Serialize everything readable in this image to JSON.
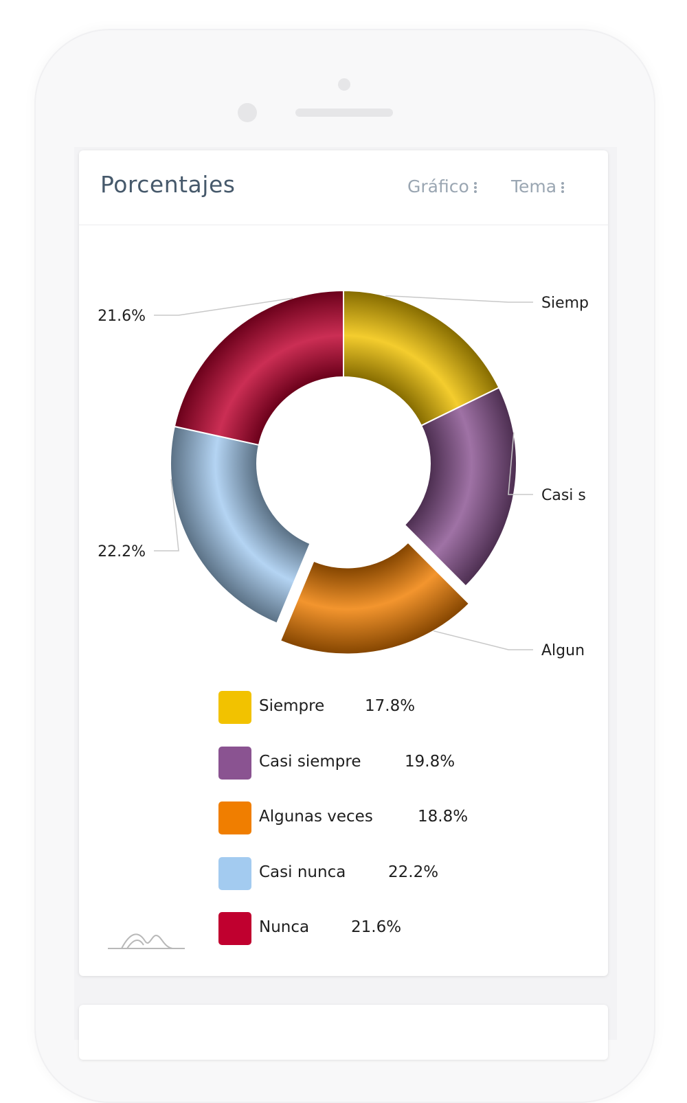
{
  "card": {
    "title": "Porcentajes",
    "menu_chart": "Gráfico",
    "menu_theme": "Tema"
  },
  "chart_data": {
    "type": "pie",
    "variant": "donut",
    "title": "Porcentajes",
    "categories": [
      "Siempre",
      "Casi siempre",
      "Algunas veces",
      "Casi nunca",
      "Nunca"
    ],
    "values": [
      17.8,
      19.8,
      18.8,
      22.2,
      21.6
    ],
    "unit": "%",
    "colors": [
      "#f2c200",
      "#8a5391",
      "#f07e00",
      "#a3cbf0",
      "#c0002f"
    ],
    "exploded": "Algunas veces",
    "outside_labels": [
      {
        "text": "Siemp",
        "side": "right"
      },
      {
        "text": "Casi s",
        "side": "right"
      },
      {
        "text": "Algun",
        "side": "right"
      },
      {
        "text": "22.2%",
        "side": "left"
      },
      {
        "text": "21.6%",
        "side": "left"
      }
    ],
    "legend": "bottom"
  },
  "legend": {
    "items": [
      {
        "label": "Siempre",
        "value": "17.8%"
      },
      {
        "label": "Casi siempre",
        "value": "19.8%"
      },
      {
        "label": "Algunas veces",
        "value": "18.8%"
      },
      {
        "label": "Casi nunca",
        "value": "22.2%"
      },
      {
        "label": "Nunca",
        "value": "21.6%"
      }
    ]
  }
}
